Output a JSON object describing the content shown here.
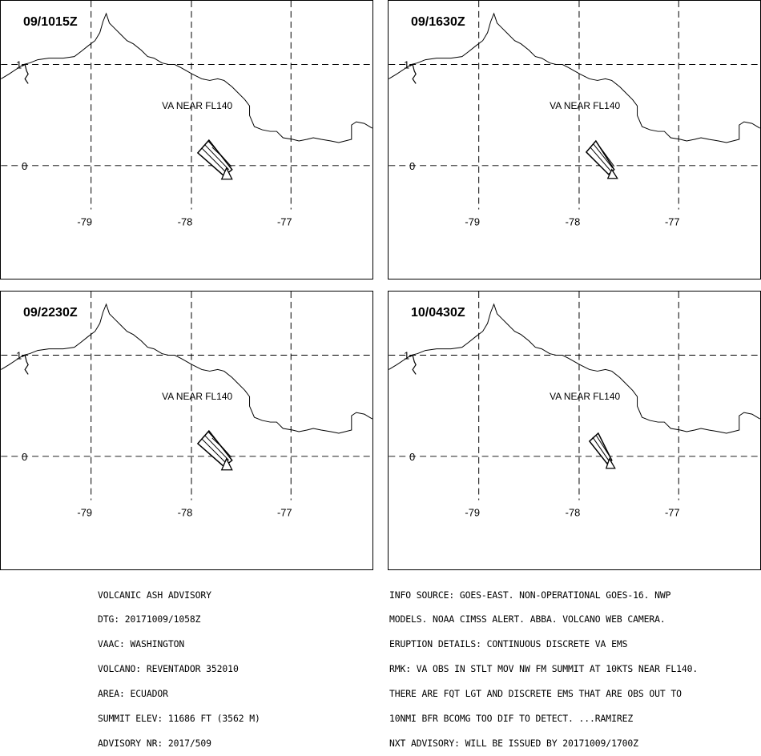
{
  "panels": [
    {
      "time": "09/1015Z",
      "label": "VA NEAR FL140"
    },
    {
      "time": "09/1630Z",
      "label": "VA NEAR FL140"
    },
    {
      "time": "09/2230Z",
      "label": "VA NEAR FL140"
    },
    {
      "time": "10/0430Z",
      "label": "VA NEAR FL140"
    }
  ],
  "axes": {
    "lat_labels": [
      "1",
      "0"
    ],
    "lon_labels": [
      "-79",
      "-78",
      "-77"
    ]
  },
  "advisory_left": [
    "VOLCANIC ASH ADVISORY",
    "DTG: 20171009/1058Z",
    "VAAC: WASHINGTON",
    "VOLCANO: REVENTADOR 352010",
    "AREA: ECUADOR",
    "SUMMIT ELEV: 11686 FT (3562 M)",
    "ADVISORY NR: 2017/509"
  ],
  "advisory_right": [
    "INFO SOURCE: GOES-EAST. NON-OPERATIONAL GOES-16. NWP",
    "MODELS. NOAA CIMSS ALERT. ABBA. VOLCANO WEB CAMERA.",
    "ERUPTION DETAILS: CONTINUOUS DISCRETE VA EMS",
    "RMK: VA OBS IN STLT MOV NW FM SUMMIT AT 10KTS NEAR FL140.",
    "THERE ARE FQT LGT AND DISCRETE EMS THAT ARE OBS OUT TO",
    "10NMI BFR BCOMG TOO DIF TO DETECT. ...RAMIREZ",
    "NXT ADVISORY: WILL BE ISSUED BY 20171009/1700Z"
  ]
}
